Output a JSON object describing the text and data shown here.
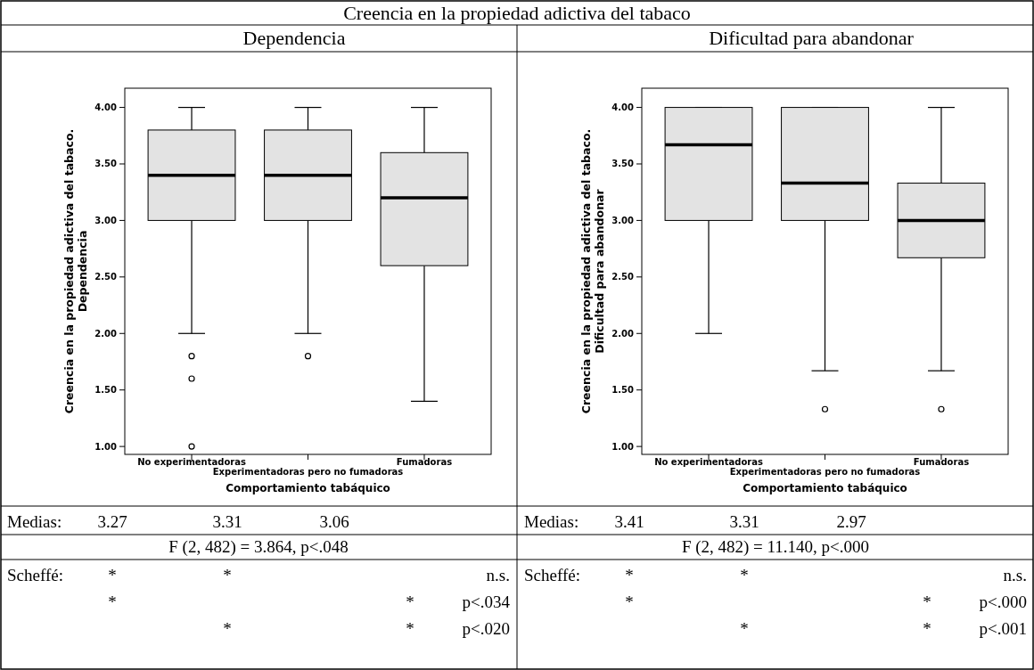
{
  "chart_data": [
    {
      "type": "box",
      "title": "Creencia en la propiedad adictiva del tabaco",
      "subtitle": "Dependencia",
      "color": "#e3e3e3",
      "categories": [
        "No experimentadoras",
        "Experimentadoras pero no fumadoras",
        "Fumadoras"
      ],
      "xlabel": "Comportamiento tabáquico",
      "ylabel": "Creencia en la propiedad adictiva del tabaco.\nDependencia",
      "ylim": [
        0.93,
        4.17
      ],
      "yticks": [
        {
          "value": 1,
          "label": "1.00"
        },
        {
          "value": 1.5,
          "label": "1.50"
        },
        {
          "value": 2,
          "label": "2.00"
        },
        {
          "value": 2.5,
          "label": "2.50"
        },
        {
          "value": 3,
          "label": "3.00"
        },
        {
          "value": 3.5,
          "label": "3.50"
        },
        {
          "value": 4,
          "label": "4.00"
        }
      ],
      "boxes": [
        {
          "low": 2,
          "q1": 3,
          "median": 3.4,
          "q3": 3.8,
          "high": 4,
          "outliers": [
            1.8,
            1.6,
            1.0
          ]
        },
        {
          "low": 2,
          "q1": 3,
          "median": 3.4,
          "q3": 3.8,
          "high": 4,
          "outliers": [
            1.8
          ]
        },
        {
          "low": 1.4,
          "q1": 2.6,
          "median": 3.2,
          "q3": 3.6,
          "high": 4
        }
      ],
      "annotations": [
        "Medias:",
        "3.27",
        "3.31",
        "3.06",
        "F (2, 482) = 3.864, p<.048",
        "Scheffé:",
        "*",
        "*",
        "n.s.",
        "*",
        "*",
        "p<.034",
        "*",
        "*",
        "p<.020"
      ]
    },
    {
      "type": "box",
      "subtitle": "Dificultad para abandonar",
      "color": "#e3e3e3",
      "categories": [
        "No experimentadoras",
        "Experimentadoras pero no fumadoras",
        "Fumadoras"
      ],
      "xlabel": "Comportamiento tabáquico",
      "ylabel": "Creencia en la propiedad adictiva del tabaco.\nDificultad para abandonar",
      "ylim": [
        0.93,
        4.17
      ],
      "yticks": [
        {
          "value": 1,
          "label": "1.00"
        },
        {
          "value": 1.5,
          "label": "1.50"
        },
        {
          "value": 2,
          "label": "2.00"
        },
        {
          "value": 2.5,
          "label": "2.50"
        },
        {
          "value": 3,
          "label": "3.00"
        },
        {
          "value": 3.5,
          "label": "3.50"
        },
        {
          "value": 4,
          "label": "4.00"
        }
      ],
      "boxes": [
        {
          "low": 2,
          "q1": 3,
          "median": 3.67,
          "q3": 4,
          "high": 4
        },
        {
          "low": 1.67,
          "q1": 3,
          "median": 3.33,
          "q3": 4,
          "high": 4,
          "outliers": [
            1.33
          ]
        },
        {
          "low": 1.67,
          "q1": 2.67,
          "median": 3,
          "q3": 3.33,
          "high": 4,
          "outliers": [
            1.33
          ]
        }
      ],
      "annotations": [
        "Medias:",
        "3.41",
        "3.31",
        "2.97",
        "F (2, 482) = 11.140, p<.000",
        "Scheffé:",
        "*",
        "*",
        "n.s.",
        "*",
        "*",
        "p<.000",
        "*",
        "*",
        "p<.001"
      ]
    }
  ]
}
